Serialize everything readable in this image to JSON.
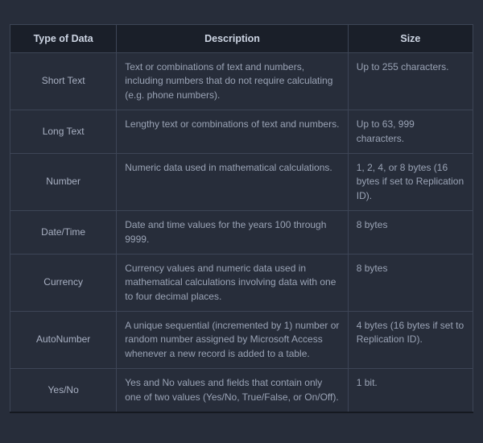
{
  "table": {
    "background_color": "#272d3a",
    "header_bg": "#1a1f29",
    "border_color": "#3d4556",
    "text_color": "#9aa3b5",
    "header_text_color": "#cdd5e3",
    "columns": [
      {
        "label": "Type of Data",
        "width_pct": 23
      },
      {
        "label": "Description",
        "width_pct": 50
      },
      {
        "label": "Size",
        "width_pct": 27
      }
    ],
    "rows": [
      {
        "type": "Short Text",
        "description": "Text or combinations of text and numbers, including numbers that do not require calculating (e.g. phone numbers).",
        "size": "Up to 255 characters."
      },
      {
        "type": "Long Text",
        "description": "Lengthy text or combinations of text and numbers.",
        "size": "Up to 63, 999 characters."
      },
      {
        "type": "Number",
        "description": "Numeric data used in mathematical calculations.",
        "size": "1, 2, 4, or 8 bytes (16 bytes if set to Replication ID)."
      },
      {
        "type": "Date/Time",
        "description": "Date and time values for the years 100 through 9999.",
        "size": "8 bytes"
      },
      {
        "type": "Currency",
        "description": "Currency values and numeric data used in mathematical calculations involving data with one to four decimal places.",
        "size": "8 bytes"
      },
      {
        "type": "AutoNumber",
        "description": "A unique sequential (incremented by 1) number or random number assigned by Microsoft Access whenever a new record is added to a table.",
        "size": "4 bytes (16 bytes if set to Replication ID)."
      },
      {
        "type": "Yes/No",
        "description": "Yes and No values and fields that contain only one of two values (Yes/No, True/False, or On/Off).",
        "size": "1 bit."
      }
    ]
  }
}
